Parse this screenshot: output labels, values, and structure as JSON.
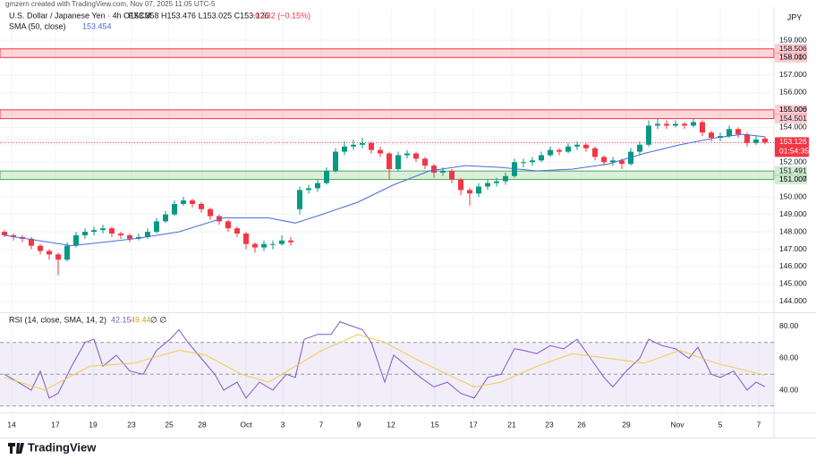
{
  "credit": "gmzern created with TradingView.com, Nov 07, 2025 11:05 UTC-5",
  "logo": "TradingView",
  "currency": "JPY",
  "chart_data": {
    "type": "candlestick",
    "symbol": "U.S. Dollar / Japanese Yen · 4h · FXCM",
    "ohlc_text": "O153.358 H153.476 L153.025 C153.126",
    "change_text": "−0.232 (−0.15%)",
    "up_color": "#089981",
    "down_color": "#f23645",
    "xlim": [
      -0.5,
      86
    ],
    "xticks": [
      {
        "value": 0.8,
        "label": "14"
      },
      {
        "value": 5.7,
        "label": "17"
      },
      {
        "value": 9.9,
        "label": "19"
      },
      {
        "value": 14.2,
        "label": "23"
      },
      {
        "value": 18.4,
        "label": "25"
      },
      {
        "value": 22.1,
        "label": "28"
      },
      {
        "value": 27,
        "label": "Oct"
      },
      {
        "value": 31.1,
        "label": "3"
      },
      {
        "value": 35.4,
        "label": "7"
      },
      {
        "value": 39.6,
        "label": "9"
      },
      {
        "value": 43.2,
        "label": "12"
      },
      {
        "value": 48.1,
        "label": "15"
      },
      {
        "value": 52.4,
        "label": "17"
      },
      {
        "value": 56.7,
        "label": "21"
      },
      {
        "value": 60.9,
        "label": "23"
      },
      {
        "value": 64.5,
        "label": "26"
      },
      {
        "value": 69.5,
        "label": "29"
      },
      {
        "value": 75.2,
        "label": "Nov"
      },
      {
        "value": 80,
        "label": "5"
      },
      {
        "value": 84.3,
        "label": "7"
      }
    ],
    "ylim": [
      143.43,
      160.8
    ],
    "yticks": [
      {
        "value": 144,
        "label": "144.000"
      },
      {
        "value": 145,
        "label": "145.000"
      },
      {
        "value": 146,
        "label": "146.000"
      },
      {
        "value": 147,
        "label": "147.000"
      },
      {
        "value": 148,
        "label": "148.000"
      },
      {
        "value": 149,
        "label": "149.000"
      },
      {
        "value": 150,
        "label": "150.000"
      },
      {
        "value": 151,
        "label": "151.000"
      },
      {
        "value": 152,
        "label": "152.000"
      },
      {
        "value": 153,
        "label": "153.000"
      },
      {
        "value": 154,
        "label": "154.000"
      },
      {
        "value": 155,
        "label": "155.000"
      },
      {
        "value": 156,
        "label": "156.000"
      },
      {
        "value": 157,
        "label": "157.000"
      },
      {
        "value": 158,
        "label": "158.000"
      },
      {
        "value": 159,
        "label": "159.000"
      }
    ],
    "candles": [
      [
        148.0,
        148.1,
        147.7,
        147.8
      ],
      [
        147.8,
        147.9,
        147.5,
        147.7
      ],
      [
        147.7,
        147.8,
        147.4,
        147.6
      ],
      [
        147.6,
        147.7,
        147.0,
        147.2
      ],
      [
        147.2,
        147.3,
        146.7,
        146.9
      ],
      [
        146.9,
        147.0,
        146.4,
        146.7
      ],
      [
        146.7,
        146.8,
        145.5,
        146.4
      ],
      [
        146.4,
        147.4,
        146.3,
        147.2
      ],
      [
        147.2,
        148.0,
        147.1,
        147.8
      ],
      [
        147.8,
        148.2,
        147.6,
        148.0
      ],
      [
        148.0,
        148.3,
        147.8,
        148.1
      ],
      [
        148.1,
        148.4,
        147.9,
        148.2
      ],
      [
        148.2,
        148.3,
        147.7,
        147.9
      ],
      [
        147.9,
        148.0,
        147.6,
        147.8
      ],
      [
        147.8,
        147.9,
        147.4,
        147.6
      ],
      [
        147.6,
        147.9,
        147.5,
        147.7
      ],
      [
        147.7,
        148.2,
        147.6,
        148.0
      ],
      [
        148.0,
        148.8,
        147.9,
        148.6
      ],
      [
        148.6,
        149.2,
        148.5,
        149.0
      ],
      [
        149.0,
        149.8,
        148.9,
        149.6
      ],
      [
        149.6,
        150.0,
        149.5,
        149.8
      ],
      [
        149.8,
        149.9,
        149.4,
        149.6
      ],
      [
        149.6,
        149.7,
        149.1,
        149.3
      ],
      [
        149.3,
        149.4,
        148.7,
        148.9
      ],
      [
        148.9,
        149.0,
        148.4,
        148.6
      ],
      [
        148.6,
        148.7,
        148.0,
        148.2
      ],
      [
        148.2,
        148.3,
        147.7,
        147.9
      ],
      [
        147.9,
        148.0,
        147.0,
        147.3
      ],
      [
        147.3,
        147.4,
        146.8,
        147.1
      ],
      [
        147.1,
        147.5,
        146.9,
        147.3
      ],
      [
        147.3,
        147.5,
        147.0,
        147.3
      ],
      [
        147.3,
        147.8,
        147.2,
        147.5
      ],
      [
        147.5,
        147.7,
        147.2,
        147.4
      ],
      [
        149.3,
        150.6,
        149.0,
        150.4
      ],
      [
        150.4,
        150.7,
        150.2,
        150.5
      ],
      [
        150.5,
        151.0,
        150.3,
        150.8
      ],
      [
        150.8,
        151.7,
        150.7,
        151.5
      ],
      [
        151.5,
        152.8,
        151.4,
        152.6
      ],
      [
        152.6,
        153.2,
        152.4,
        152.9
      ],
      [
        152.9,
        153.3,
        152.7,
        153.0
      ],
      [
        153.0,
        153.4,
        152.8,
        153.1
      ],
      [
        153.1,
        153.2,
        152.5,
        152.7
      ],
      [
        152.7,
        152.9,
        152.3,
        152.5
      ],
      [
        152.5,
        152.6,
        151.0,
        151.6
      ],
      [
        151.6,
        152.6,
        151.5,
        152.4
      ],
      [
        152.4,
        152.7,
        152.2,
        152.5
      ],
      [
        152.5,
        152.6,
        152.0,
        152.2
      ],
      [
        152.2,
        152.3,
        151.6,
        151.8
      ],
      [
        151.8,
        151.9,
        151.1,
        151.4
      ],
      [
        151.4,
        151.7,
        151.2,
        151.5
      ],
      [
        151.5,
        151.6,
        150.8,
        151.0
      ],
      [
        151.0,
        151.1,
        150.1,
        150.4
      ],
      [
        150.4,
        150.5,
        149.5,
        150.2
      ],
      [
        150.2,
        150.8,
        150.0,
        150.6
      ],
      [
        150.6,
        151.0,
        150.4,
        150.8
      ],
      [
        150.8,
        151.1,
        150.6,
        150.9
      ],
      [
        150.9,
        151.4,
        150.7,
        151.2
      ],
      [
        151.2,
        152.2,
        151.1,
        152.0
      ],
      [
        152.0,
        152.2,
        151.7,
        152.0
      ],
      [
        152.0,
        152.3,
        151.8,
        152.1
      ],
      [
        152.1,
        152.6,
        152.0,
        152.4
      ],
      [
        152.4,
        152.9,
        152.3,
        152.7
      ],
      [
        152.7,
        152.8,
        152.4,
        152.6
      ],
      [
        152.6,
        153.1,
        152.5,
        152.9
      ],
      [
        152.9,
        153.2,
        152.7,
        153.0
      ],
      [
        153.0,
        153.1,
        152.6,
        152.8
      ],
      [
        152.8,
        152.9,
        152.1,
        152.3
      ],
      [
        152.3,
        152.4,
        151.8,
        152.0
      ],
      [
        152.0,
        152.3,
        151.8,
        152.1
      ],
      [
        152.1,
        152.2,
        151.6,
        151.9
      ],
      [
        151.9,
        152.8,
        151.8,
        152.6
      ],
      [
        152.6,
        153.2,
        152.4,
        153.0
      ],
      [
        153.0,
        154.4,
        152.9,
        154.1
      ],
      [
        154.1,
        154.5,
        153.9,
        154.2
      ],
      [
        154.2,
        154.4,
        153.9,
        154.1
      ],
      [
        154.1,
        154.4,
        154.0,
        154.2
      ],
      [
        154.2,
        154.3,
        153.9,
        154.1
      ],
      [
        154.1,
        154.5,
        154.0,
        154.3
      ],
      [
        154.3,
        154.4,
        153.5,
        153.7
      ],
      [
        153.7,
        153.8,
        153.2,
        153.4
      ],
      [
        153.4,
        153.7,
        153.2,
        153.5
      ],
      [
        153.5,
        154.1,
        153.4,
        153.9
      ],
      [
        153.9,
        154.0,
        153.4,
        153.6
      ],
      [
        153.6,
        153.7,
        152.9,
        153.1
      ],
      [
        153.1,
        153.5,
        153.0,
        153.3
      ],
      [
        153.358,
        153.476,
        153.025,
        153.126
      ]
    ],
    "sma": {
      "name": "SMA (50, close)",
      "color": "#4a6bd6",
      "x": [
        0,
        7.5,
        14.5,
        19.5,
        24.5,
        29.5,
        32.5,
        35.5,
        39.5,
        43.5,
        47.5,
        51.5,
        55.5,
        59.5,
        63.5,
        67.5,
        71.5,
        75.5,
        79.5,
        82.5,
        85
      ],
      "values": [
        147.8,
        147.2,
        147.6,
        148,
        148.8,
        148.8,
        148.5,
        149,
        149.7,
        150.7,
        151.5,
        151.8,
        151.7,
        151.5,
        151.6,
        151.9,
        152.5,
        153,
        153.4,
        153.6,
        153.454
      ]
    },
    "zones": [
      {
        "color": "#f23645",
        "high": 158.506,
        "low": {
          "value": 158.01,
          "label": "158.010"
        }
      },
      {
        "color": "#f23645",
        "high": 155.006,
        "low": 154.501
      },
      {
        "color": "#4caf50",
        "high": 151.491,
        "low": 151.007
      }
    ],
    "last_price": 153.126,
    "countdown": "01:54:35",
    "rsi": {
      "type": "line",
      "name": "RSI (14, close, SMA, 14, 2)",
      "extra": "∅ ∅",
      "ylim": [
        26.5,
        87.3
      ],
      "yticks": [
        {
          "value": 40,
          "label": "40.00"
        },
        {
          "value": 60,
          "label": "60.00"
        },
        {
          "value": 80,
          "label": "80.00"
        }
      ],
      "bands": [
        30,
        50,
        70
      ],
      "series": [
        {
          "color": "#7e57c2",
          "x": [
            0,
            1.5,
            3,
            4,
            5,
            6,
            7.5,
            9,
            10,
            11,
            12.5,
            14,
            15.5,
            17,
            18.5,
            19.5,
            20.5,
            22,
            23.5,
            24.5,
            26,
            27,
            28.5,
            30,
            31.5,
            32.5,
            33.5,
            35,
            36.5,
            37.5,
            39,
            40,
            41,
            42.5,
            43.5,
            45,
            46.5,
            48,
            49.5,
            51,
            52.5,
            54,
            55.5,
            57,
            58,
            59.5,
            61,
            62.5,
            64,
            65.5,
            67,
            68,
            69.5,
            71,
            72,
            73.5,
            75,
            76.5,
            77.5,
            79,
            80,
            81.5,
            83,
            84,
            85
          ],
          "values": [
            50,
            45,
            40,
            52,
            35,
            38,
            55,
            70,
            72,
            55,
            62,
            52,
            50,
            65,
            72,
            78,
            70,
            60,
            50,
            40,
            45,
            35,
            45,
            40,
            50,
            48,
            72,
            75,
            75,
            83,
            80,
            78,
            70,
            45,
            62,
            55,
            48,
            42,
            45,
            38,
            35,
            48,
            50,
            66,
            65,
            63,
            68,
            66,
            72,
            60,
            48,
            42,
            52,
            60,
            72,
            68,
            66,
            60,
            67,
            50,
            48,
            52,
            40,
            45,
            42.15
          ]
        },
        {
          "color": "#f2c94c",
          "x": [
            0,
            4.5,
            9.5,
            14.5,
            19.5,
            22.5,
            26.5,
            29.5,
            32.5,
            35.5,
            39.5,
            42.5,
            46.5,
            49.5,
            52.5,
            55.5,
            59.5,
            63.5,
            67.5,
            71.5,
            75.5,
            79.5,
            85
          ],
          "values": [
            48,
            40,
            55,
            57,
            65,
            62,
            50,
            45,
            55,
            65,
            75,
            70,
            58,
            50,
            42,
            45,
            55,
            63,
            60,
            57,
            65,
            57,
            49.44
          ]
        }
      ]
    }
  }
}
